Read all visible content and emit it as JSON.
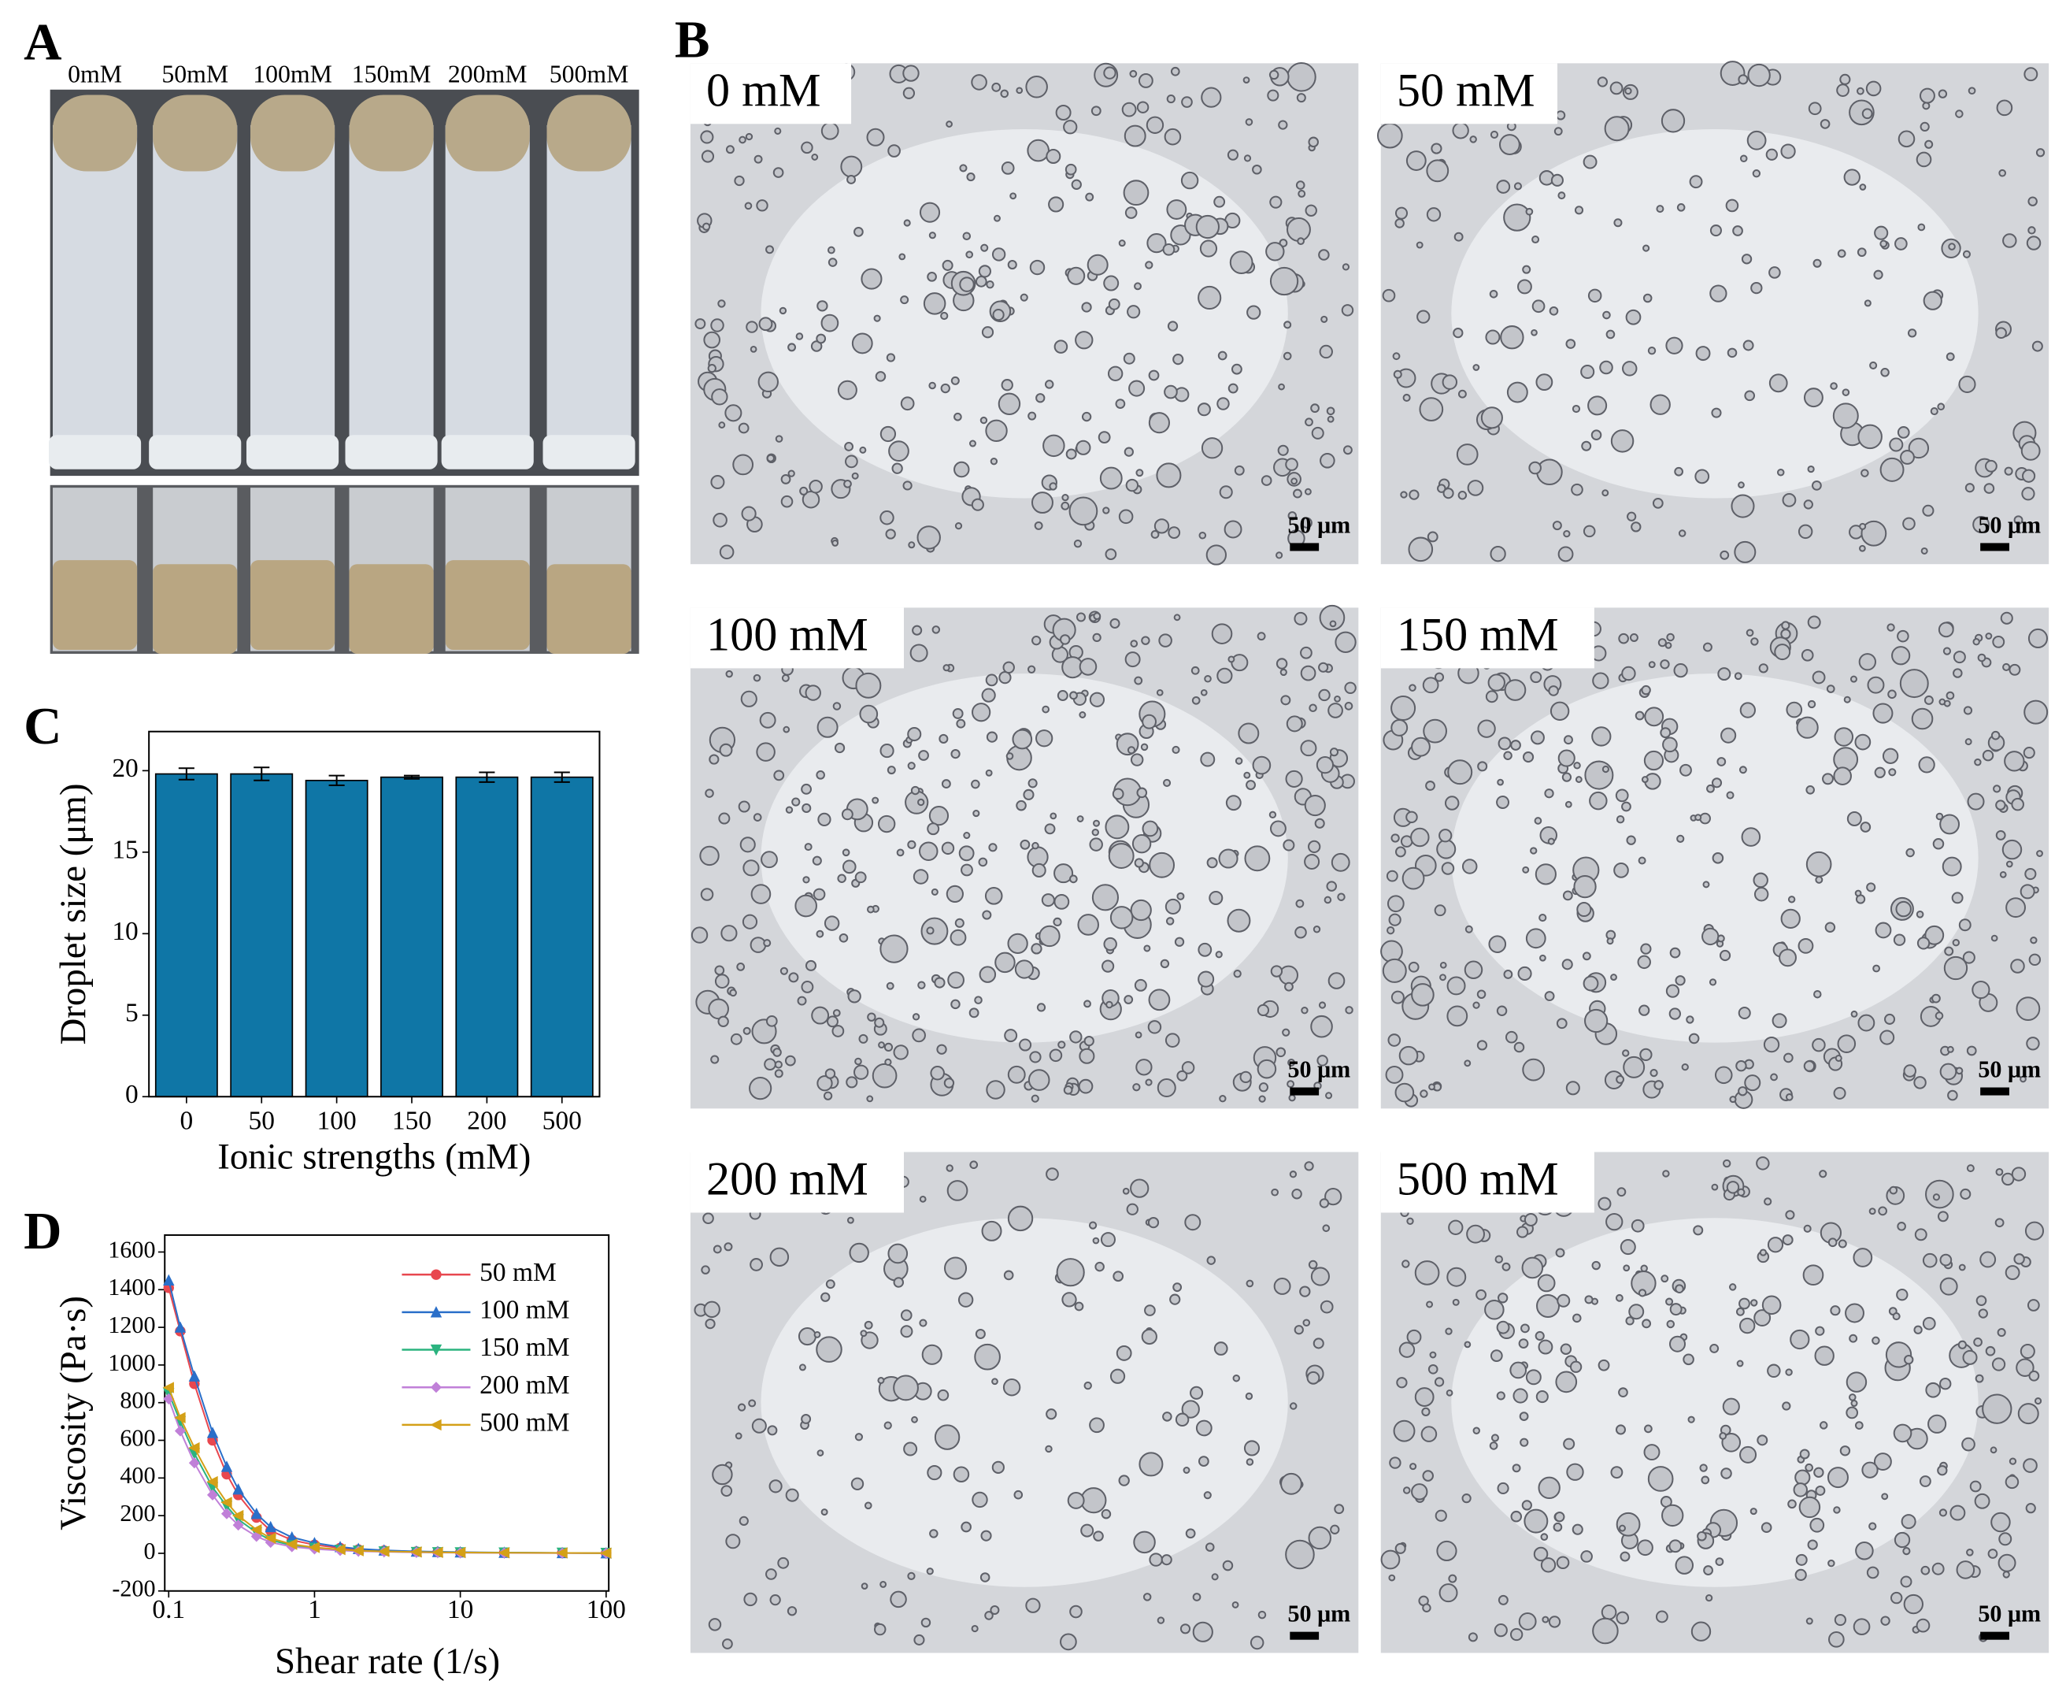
{
  "panel_labels": [
    "A",
    "B",
    "C",
    "D"
  ],
  "panel_a": {
    "labels": [
      "0mM",
      "50mM",
      "100mM",
      "150mM",
      "200mM",
      "500mM"
    ]
  },
  "panel_b": {
    "images": [
      {
        "label": "0 mM",
        "scale_bar": "50 μm"
      },
      {
        "label": "50 mM",
        "scale_bar": "50 μm"
      },
      {
        "label": "100 mM",
        "scale_bar": "50 μm"
      },
      {
        "label": "150 mM",
        "scale_bar": "50 μm"
      },
      {
        "label": "200 mM",
        "scale_bar": "50 μm"
      },
      {
        "label": "500 mM",
        "scale_bar": "50 μm"
      }
    ]
  },
  "chart_data": [
    {
      "type": "bar",
      "xlabel": "Ionic strengths (mM)",
      "ylabel": "Droplet size (μm)",
      "categories": [
        "0",
        "50",
        "100",
        "150",
        "200",
        "500"
      ],
      "values": [
        19.8,
        19.8,
        19.4,
        19.6,
        19.6,
        19.6
      ],
      "errors": [
        0.35,
        0.4,
        0.3,
        0.1,
        0.3,
        0.3
      ],
      "color": "#0f76a6",
      "ylim": [
        0,
        22.4
      ],
      "yticks": [
        0,
        5,
        10,
        15,
        20
      ]
    },
    {
      "type": "line",
      "xlabel": "Shear rate (1/s)",
      "ylabel": "Viscosity (Pa·s)",
      "log_x": true,
      "x": [
        0.1,
        0.12,
        0.15,
        0.2,
        0.25,
        0.3,
        0.4,
        0.5,
        0.7,
        1,
        1.5,
        2,
        3,
        5,
        7,
        10,
        20,
        50,
        100
      ],
      "xlim": [
        0.1,
        100
      ],
      "xticks": [
        0.1,
        1,
        10,
        100
      ],
      "ylim": [
        -200,
        1690
      ],
      "yticks": [
        -200,
        0,
        200,
        400,
        600,
        800,
        1000,
        1200,
        1400,
        1600
      ],
      "legend": "upper right",
      "series": [
        {
          "name": "50 mM",
          "color": "#e8474f",
          "marker": "circle",
          "values": [
            1410,
            1180,
            900,
            600,
            420,
            310,
            190,
            120,
            70,
            45,
            28,
            20,
            14,
            9,
            7,
            5,
            3,
            2,
            1
          ]
        },
        {
          "name": "100 mM",
          "color": "#2a6fc9",
          "marker": "triangle-up",
          "values": [
            1450,
            1200,
            940,
            640,
            460,
            340,
            210,
            140,
            85,
            55,
            34,
            24,
            16,
            10,
            8,
            6,
            4,
            2,
            1
          ]
        },
        {
          "name": "150 mM",
          "color": "#2bb37f",
          "marker": "triangle-down",
          "values": [
            850,
            700,
            530,
            350,
            250,
            180,
            110,
            70,
            42,
            28,
            18,
            13,
            9,
            6,
            5,
            4,
            3,
            2,
            1
          ]
        },
        {
          "name": "200 mM",
          "color": "#c080d8",
          "marker": "diamond",
          "values": [
            820,
            650,
            480,
            310,
            210,
            150,
            90,
            58,
            35,
            23,
            15,
            11,
            8,
            5,
            4,
            3,
            2,
            1,
            1
          ]
        },
        {
          "name": "500 mM",
          "color": "#d4a017",
          "marker": "triangle-left",
          "values": [
            880,
            720,
            560,
            380,
            270,
            200,
            125,
            80,
            48,
            31,
            20,
            14,
            10,
            7,
            5,
            4,
            3,
            2,
            1
          ]
        }
      ]
    }
  ]
}
